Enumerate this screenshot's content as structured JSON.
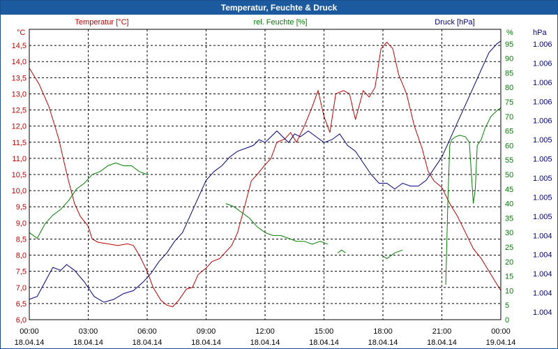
{
  "window": {
    "title": "Temperatur, Feuchte & Druck"
  },
  "chart_data": {
    "type": "line",
    "title": "Temperatur, Feuchte & Druck",
    "x_ticks": [
      {
        "time": "00:00",
        "date": "18.04.14"
      },
      {
        "time": "03:00",
        "date": "18.04.14"
      },
      {
        "time": "06:00",
        "date": "18.04.14"
      },
      {
        "time": "09:00",
        "date": "18.04.14"
      },
      {
        "time": "12:00",
        "date": "18.04.14"
      },
      {
        "time": "15:00",
        "date": "18.04.14"
      },
      {
        "time": "18:00",
        "date": "18.04.14"
      },
      {
        "time": "21:00",
        "date": "18.04.14"
      },
      {
        "time": "00:00",
        "date": "19.04.14"
      }
    ],
    "xlim_hours": [
      0,
      24
    ],
    "axes": {
      "temperature": {
        "label": "Temperatur [°C]",
        "unit": "°C",
        "color": "#c00000",
        "ylim": [
          6.0,
          15.0
        ],
        "ticks": [
          "6,0",
          "6,5",
          "7,0",
          "7,5",
          "8,0",
          "8,5",
          "9,0",
          "9,5",
          "10,0",
          "10,5",
          "11,0",
          "11,5",
          "12,0",
          "12,5",
          "13,0",
          "13,5",
          "14,0",
          "14,5"
        ]
      },
      "humidity": {
        "label": "rel. Feuchte [%]",
        "unit": "%",
        "color": "#008000",
        "ylim": [
          0,
          100
        ],
        "ticks": [
          "0",
          "5",
          "10",
          "15",
          "20",
          "25",
          "30",
          "35",
          "40",
          "45",
          "50",
          "55",
          "60",
          "65",
          "70",
          "75",
          "80",
          "85",
          "90",
          "95"
        ]
      },
      "pressure": {
        "label": "Druck [hPa]",
        "unit": "hPa",
        "color": "#000080",
        "ticks": [
          "1.004",
          "1.004",
          "1.004",
          "1.004",
          "1.004",
          "1.005",
          "1.005",
          "1.005",
          "1.005",
          "1.005",
          "1.006",
          "1.006",
          "1.006",
          "1.006",
          "1.006"
        ]
      }
    },
    "series": [
      {
        "name": "Temperatur",
        "color": "#c00000",
        "points": [
          [
            0,
            13.8
          ],
          [
            0.5,
            13.3
          ],
          [
            1,
            12.6
          ],
          [
            1.5,
            11.6
          ],
          [
            1.8,
            10.8
          ],
          [
            2,
            10.3
          ],
          [
            2.3,
            9.6
          ],
          [
            2.6,
            9.2
          ],
          [
            3,
            8.9
          ],
          [
            3.2,
            8.5
          ],
          [
            3.5,
            8.4
          ],
          [
            4,
            8.35
          ],
          [
            4.5,
            8.3
          ],
          [
            5,
            8.35
          ],
          [
            5.3,
            8.3
          ],
          [
            5.6,
            8.0
          ],
          [
            6,
            7.5
          ],
          [
            6.3,
            7.0
          ],
          [
            6.7,
            6.6
          ],
          [
            7,
            6.45
          ],
          [
            7.3,
            6.4
          ],
          [
            7.6,
            6.6
          ],
          [
            8,
            6.95
          ],
          [
            8.3,
            7.0
          ],
          [
            8.6,
            7.4
          ],
          [
            9,
            7.6
          ],
          [
            9.3,
            7.8
          ],
          [
            9.7,
            7.9
          ],
          [
            10,
            8.1
          ],
          [
            10.3,
            8.3
          ],
          [
            10.6,
            8.7
          ],
          [
            11,
            9.6
          ],
          [
            11.3,
            10.3
          ],
          [
            11.6,
            10.5
          ],
          [
            12,
            10.8
          ],
          [
            12.3,
            11.0
          ],
          [
            12.6,
            11.5
          ],
          [
            13,
            11.6
          ],
          [
            13.3,
            11.8
          ],
          [
            13.6,
            11.5
          ],
          [
            14,
            12.0
          ],
          [
            14.4,
            12.6
          ],
          [
            14.7,
            13.1
          ],
          [
            15,
            12.3
          ],
          [
            15.3,
            11.8
          ],
          [
            15.6,
            13.0
          ],
          [
            16,
            13.1
          ],
          [
            16.3,
            13.0
          ],
          [
            16.6,
            12.2
          ],
          [
            17,
            13.1
          ],
          [
            17.3,
            12.9
          ],
          [
            17.6,
            13.2
          ],
          [
            17.9,
            14.4
          ],
          [
            18.2,
            14.6
          ],
          [
            18.5,
            14.4
          ],
          [
            18.8,
            13.6
          ],
          [
            19.2,
            13.0
          ],
          [
            19.6,
            12.0
          ],
          [
            20,
            11.3
          ],
          [
            20.3,
            10.6
          ],
          [
            20.6,
            10.3
          ],
          [
            21,
            10.1
          ],
          [
            21.4,
            9.6
          ],
          [
            21.8,
            9.2
          ],
          [
            22.2,
            8.7
          ],
          [
            22.6,
            8.2
          ],
          [
            23,
            7.9
          ],
          [
            23.4,
            7.5
          ],
          [
            23.8,
            7.1
          ],
          [
            24,
            6.9
          ]
        ]
      },
      {
        "name": "rel. Feuchte",
        "color": "#008000",
        "segments": [
          [
            [
              0,
              30
            ],
            [
              0.4,
              28
            ],
            [
              0.8,
              33
            ],
            [
              1.2,
              36
            ],
            [
              1.6,
              38
            ],
            [
              2,
              41
            ],
            [
              2.4,
              45
            ],
            [
              2.8,
              47
            ],
            [
              3.2,
              50
            ],
            [
              3.6,
              51
            ],
            [
              4,
              53
            ],
            [
              4.4,
              54
            ],
            [
              4.8,
              53
            ],
            [
              5.2,
              53
            ],
            [
              5.6,
              51
            ],
            [
              6,
              50
            ]
          ],
          [
            [
              10,
              40
            ],
            [
              10.4,
              39
            ],
            [
              10.8,
              37
            ],
            [
              11.2,
              35
            ],
            [
              11.6,
              32
            ],
            [
              12,
              30
            ],
            [
              12.4,
              29
            ],
            [
              12.8,
              29
            ],
            [
              13.2,
              28
            ],
            [
              13.6,
              27
            ],
            [
              14,
              27
            ],
            [
              14.4,
              26
            ],
            [
              14.8,
              27
            ],
            [
              15.2,
              26
            ]
          ],
          [
            [
              15.7,
              23
            ],
            [
              15.9,
              24
            ],
            [
              16.1,
              23
            ]
          ],
          [
            [
              18,
              22
            ],
            [
              18.2,
              21
            ],
            [
              18.6,
              23
            ],
            [
              19,
              24
            ]
          ],
          [
            [
              21.2,
              12
            ],
            [
              21.3,
              40
            ],
            [
              21.4,
              60
            ],
            [
              21.5,
              62
            ],
            [
              21.7,
              63
            ],
            [
              21.9,
              63.5
            ],
            [
              22.2,
              63
            ],
            [
              22.4,
              61
            ],
            [
              22.6,
              40
            ],
            [
              22.7,
              45
            ],
            [
              22.8,
              60
            ],
            [
              23,
              62
            ],
            [
              23.2,
              66
            ],
            [
              23.5,
              70
            ],
            [
              23.8,
              72
            ],
            [
              24,
              73
            ]
          ]
        ]
      },
      {
        "name": "Druck",
        "color": "#000080",
        "series_note": "plotted on a 0–100 relative scale matching the right-hand axis",
        "points": [
          [
            0,
            7
          ],
          [
            0.4,
            8
          ],
          [
            0.8,
            13
          ],
          [
            1.2,
            18
          ],
          [
            1.6,
            17
          ],
          [
            1.9,
            19
          ],
          [
            2.3,
            17
          ],
          [
            2.8,
            13
          ],
          [
            3.3,
            8
          ],
          [
            3.8,
            6
          ],
          [
            4.3,
            7
          ],
          [
            4.8,
            9
          ],
          [
            5.3,
            10
          ],
          [
            5.8,
            13
          ],
          [
            6.2,
            16
          ],
          [
            6.6,
            20
          ],
          [
            7,
            23
          ],
          [
            7.4,
            27
          ],
          [
            7.8,
            30
          ],
          [
            8.2,
            36
          ],
          [
            8.6,
            42
          ],
          [
            9,
            48
          ],
          [
            9.4,
            51
          ],
          [
            9.8,
            53
          ],
          [
            10.2,
            56
          ],
          [
            10.6,
            58
          ],
          [
            11,
            59
          ],
          [
            11.4,
            60
          ],
          [
            11.7,
            62
          ],
          [
            12,
            61
          ],
          [
            12.3,
            63
          ],
          [
            12.6,
            65
          ],
          [
            12.9,
            63
          ],
          [
            13.2,
            61
          ],
          [
            13.5,
            64
          ],
          [
            13.8,
            63
          ],
          [
            14.2,
            65
          ],
          [
            14.6,
            63
          ],
          [
            15,
            61
          ],
          [
            15.4,
            62
          ],
          [
            15.8,
            64
          ],
          [
            16.2,
            60
          ],
          [
            16.6,
            58
          ],
          [
            17,
            54
          ],
          [
            17.4,
            50
          ],
          [
            17.8,
            47
          ],
          [
            18.2,
            47
          ],
          [
            18.6,
            45
          ],
          [
            19,
            47
          ],
          [
            19.4,
            46
          ],
          [
            19.8,
            46
          ],
          [
            20.2,
            48
          ],
          [
            20.6,
            52
          ],
          [
            21,
            56
          ],
          [
            21.4,
            62
          ],
          [
            21.8,
            68
          ],
          [
            22.2,
            74
          ],
          [
            22.6,
            80
          ],
          [
            23,
            86
          ],
          [
            23.4,
            92
          ],
          [
            23.8,
            95
          ],
          [
            24,
            96
          ]
        ]
      }
    ]
  }
}
